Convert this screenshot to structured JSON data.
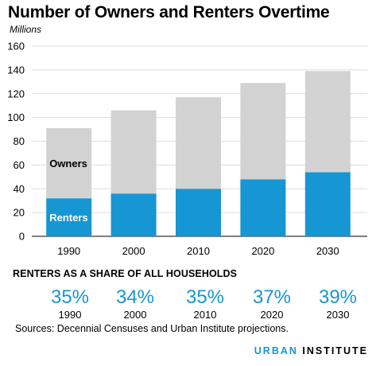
{
  "title": "Number of Owners and Renters Overtime",
  "units_label": "Millions",
  "chart_data": {
    "type": "bar",
    "stacked": true,
    "categories": [
      "1990",
      "2000",
      "2010",
      "2020",
      "2030"
    ],
    "series": [
      {
        "name": "Renters",
        "values": [
          32,
          36,
          40,
          48,
          54
        ],
        "color": "#1696d2",
        "label_color": "#ffffff"
      },
      {
        "name": "Owners",
        "values": [
          59,
          70,
          77,
          81,
          85
        ],
        "color": "#d2d2d2",
        "label_color": "#000000"
      }
    ],
    "ylim": [
      0,
      160
    ],
    "yticks": [
      "0",
      "20",
      "40",
      "60",
      "80",
      "100",
      "120",
      "140",
      "160"
    ],
    "grid": true,
    "legend": "inline labels on first bar"
  },
  "share": {
    "heading": "RENTERS AS A SHARE OF ALL HOUSEHOLDS",
    "items": [
      {
        "pct": "35%",
        "year": "1990"
      },
      {
        "pct": "34%",
        "year": "2000"
      },
      {
        "pct": "35%",
        "year": "2010"
      },
      {
        "pct": "37%",
        "year": "2020"
      },
      {
        "pct": "39%",
        "year": "2030"
      }
    ]
  },
  "source": "Sources: Decennial Censuses and Urban Institute projections.",
  "brand": {
    "part1": "URBAN",
    "part2": "INSTITUTE"
  },
  "colors": {
    "accent": "#1696d2",
    "owners": "#d2d2d2",
    "grid": "#dedede"
  }
}
